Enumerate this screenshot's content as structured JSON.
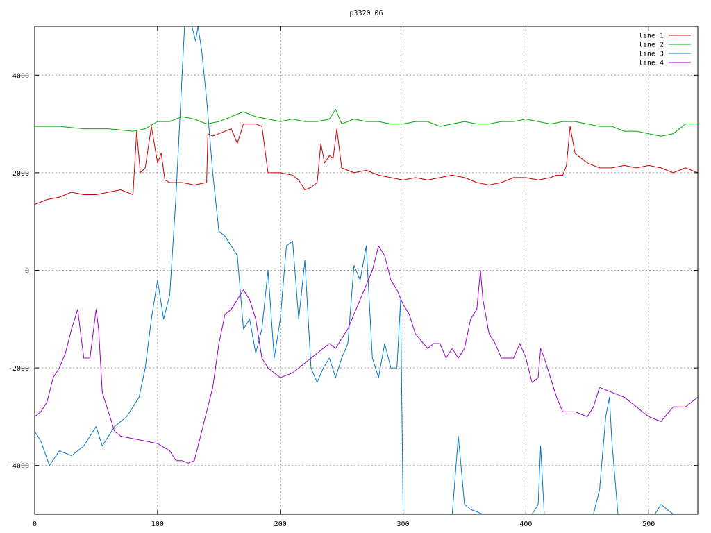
{
  "chart_data": {
    "type": "line",
    "title": "p3320_06",
    "xlabel": "",
    "ylabel": "",
    "xlim": [
      0,
      540
    ],
    "ylim": [
      -5000,
      5000
    ],
    "x_ticks": [
      0,
      100,
      200,
      300,
      400,
      500
    ],
    "y_ticks": [
      -4000,
      -2000,
      0,
      2000,
      4000
    ],
    "x_tick_labels": [
      "0",
      "100",
      "200",
      "300",
      "400",
      "500"
    ],
    "y_tick_labels": [
      "-4000",
      "-2000",
      "0",
      "2000",
      "4000"
    ],
    "grid": true,
    "legend_position": "top-right",
    "series": [
      {
        "name": "line 1",
        "color": "#cc0000",
        "x": [
          0,
          10,
          20,
          30,
          40,
          50,
          60,
          70,
          80,
          83,
          86,
          90,
          95,
          100,
          103,
          106,
          110,
          120,
          130,
          140,
          141,
          145,
          150,
          160,
          165,
          170,
          180,
          185,
          190,
          200,
          210,
          215,
          220,
          225,
          230,
          233,
          236,
          240,
          243,
          246,
          250,
          260,
          270,
          280,
          290,
          300,
          310,
          320,
          330,
          340,
          350,
          360,
          370,
          380,
          390,
          400,
          410,
          420,
          425,
          430,
          433,
          436,
          440,
          450,
          460,
          470,
          480,
          490,
          500,
          510,
          520,
          530,
          540
        ],
        "y": [
          1350,
          1450,
          1500,
          1600,
          1550,
          1550,
          1600,
          1650,
          1550,
          2850,
          2000,
          2100,
          2950,
          2200,
          2400,
          1850,
          1800,
          1800,
          1750,
          1800,
          2800,
          2750,
          2800,
          2900,
          2600,
          3000,
          3000,
          2950,
          2000,
          2000,
          1950,
          1850,
          1650,
          1700,
          1800,
          2600,
          2200,
          2350,
          2300,
          2900,
          2100,
          2000,
          2050,
          1950,
          1900,
          1850,
          1900,
          1850,
          1900,
          1950,
          1900,
          1800,
          1750,
          1800,
          1900,
          1900,
          1850,
          1900,
          1950,
          1950,
          2150,
          2950,
          2400,
          2200,
          2100,
          2100,
          2150,
          2100,
          2150,
          2100,
          2000,
          2100,
          2000
        ]
      },
      {
        "name": "line 2",
        "color": "#00aa00",
        "x": [
          0,
          20,
          40,
          60,
          80,
          90,
          100,
          110,
          120,
          130,
          140,
          150,
          160,
          170,
          180,
          190,
          200,
          210,
          220,
          230,
          240,
          245,
          250,
          260,
          270,
          280,
          290,
          300,
          310,
          320,
          330,
          340,
          350,
          360,
          370,
          380,
          390,
          400,
          410,
          420,
          430,
          440,
          450,
          460,
          470,
          480,
          490,
          500,
          510,
          520,
          530,
          540
        ],
        "y": [
          2950,
          2950,
          2900,
          2900,
          2850,
          2900,
          3050,
          3050,
          3150,
          3100,
          3000,
          3050,
          3150,
          3250,
          3150,
          3100,
          3050,
          3100,
          3050,
          3050,
          3100,
          3300,
          3000,
          3100,
          3050,
          3050,
          3000,
          3000,
          3050,
          3050,
          2950,
          3000,
          3050,
          3000,
          3000,
          3050,
          3050,
          3100,
          3050,
          3000,
          3050,
          3050,
          3000,
          2950,
          2950,
          2850,
          2850,
          2800,
          2750,
          2800,
          3000,
          3000
        ]
      },
      {
        "name": "line 3",
        "color": "#0077cc",
        "x": [
          0,
          5,
          12,
          20,
          30,
          40,
          50,
          55,
          65,
          75,
          85,
          90,
          95,
          100,
          105,
          110,
          115,
          118,
          122,
          128,
          131,
          133,
          136,
          140,
          145,
          150,
          155,
          160,
          165,
          170,
          175,
          180,
          185,
          190,
          195,
          200,
          205,
          210,
          215,
          220,
          225,
          230,
          235,
          240,
          245,
          250,
          255,
          260,
          265,
          270,
          275,
          280,
          285,
          290,
          295,
          298,
          300,
          305,
          340,
          345,
          350,
          355,
          360,
          365,
          370,
          375,
          400,
          405,
          410,
          412,
          415,
          455,
          460,
          465,
          468,
          470,
          475,
          480,
          490,
          495,
          500,
          505,
          510,
          520,
          530,
          540
        ],
        "y": [
          -3300,
          -3500,
          -4000,
          -3700,
          -3800,
          -3600,
          -3200,
          -3600,
          -3200,
          -3000,
          -2600,
          -2000,
          -1000,
          -200,
          -1000,
          -500,
          1500,
          3000,
          5000,
          5000,
          4700,
          5000,
          4500,
          3500,
          2000,
          800,
          700,
          500,
          300,
          -1200,
          -1000,
          -1700,
          -1200,
          0,
          -1800,
          -1000,
          500,
          600,
          -1000,
          200,
          -2000,
          -2300,
          -2000,
          -1800,
          -2200,
          -1800,
          -1500,
          100,
          -200,
          500,
          -1800,
          -2200,
          -1500,
          -2000,
          -2000,
          -600,
          -5000,
          -5000,
          -5000,
          -3400,
          -4800,
          -4900,
          -4950,
          -5000,
          -5000,
          -5000,
          -5000,
          -5000,
          -4800,
          -3600,
          -5000,
          -5000,
          -4500,
          -3000,
          -2600,
          -3500,
          -5000,
          -5000,
          -5000,
          -5000,
          -5000,
          -5000,
          -4800,
          -5000,
          -5000,
          -5000
        ]
      },
      {
        "name": "line 4",
        "color": "#9900cc",
        "x": [
          0,
          5,
          10,
          15,
          20,
          25,
          30,
          35,
          37,
          40,
          45,
          50,
          52,
          55,
          60,
          65,
          70,
          80,
          90,
          100,
          110,
          115,
          120,
          125,
          130,
          135,
          140,
          145,
          150,
          155,
          160,
          165,
          170,
          175,
          180,
          185,
          190,
          200,
          210,
          220,
          230,
          240,
          245,
          250,
          255,
          260,
          265,
          270,
          275,
          280,
          285,
          290,
          295,
          300,
          305,
          310,
          320,
          325,
          330,
          335,
          340,
          345,
          350,
          355,
          360,
          363,
          365,
          370,
          375,
          380,
          390,
          395,
          400,
          405,
          410,
          412,
          415,
          420,
          425,
          430,
          440,
          450,
          455,
          460,
          470,
          480,
          490,
          500,
          510,
          520,
          530,
          540
        ],
        "y": [
          -3000,
          -2900,
          -2700,
          -2200,
          -2000,
          -1700,
          -1200,
          -800,
          -1200,
          -1800,
          -1800,
          -800,
          -1200,
          -2500,
          -2900,
          -3300,
          -3400,
          -3450,
          -3500,
          -3550,
          -3700,
          -3900,
          -3900,
          -3950,
          -3900,
          -3400,
          -2900,
          -2400,
          -1500,
          -900,
          -800,
          -600,
          -400,
          -600,
          -1000,
          -1800,
          -2000,
          -2200,
          -2100,
          -1900,
          -1700,
          -1500,
          -1600,
          -1400,
          -1200,
          -900,
          -600,
          -300,
          0,
          500,
          300,
          -200,
          -400,
          -700,
          -900,
          -1300,
          -1600,
          -1500,
          -1500,
          -1800,
          -1600,
          -1800,
          -1600,
          -1000,
          -800,
          0,
          -600,
          -1300,
          -1500,
          -1800,
          -1800,
          -1500,
          -1800,
          -2300,
          -2200,
          -1600,
          -1800,
          -2200,
          -2600,
          -2900,
          -2900,
          -3000,
          -2800,
          -2400,
          -2500,
          -2600,
          -2800,
          -3000,
          -3100,
          -2800,
          -2800,
          -2600
        ]
      }
    ]
  }
}
